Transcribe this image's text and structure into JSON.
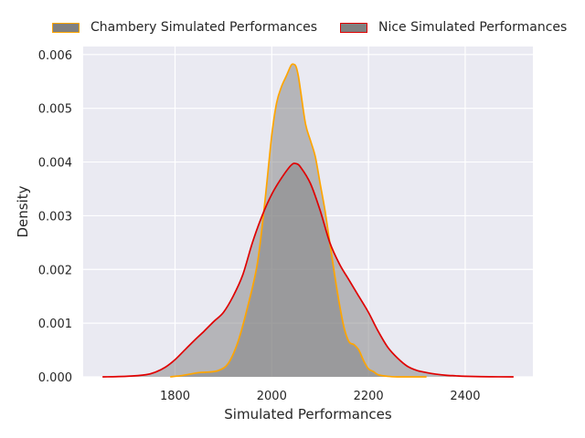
{
  "chart_data": {
    "type": "area",
    "xlabel": "Simulated Performances",
    "ylabel": "Density",
    "xlim": [
      1610,
      2540
    ],
    "ylim": [
      0,
      0.00615
    ],
    "x_ticks": [
      1800,
      2000,
      2200,
      2400
    ],
    "x_tick_labels": [
      "1800",
      "2000",
      "2200",
      "2400"
    ],
    "y_ticks": [
      0,
      0.001,
      0.002,
      0.003,
      0.004,
      0.005,
      0.006
    ],
    "y_tick_labels": [
      "0.000",
      "0.001",
      "0.002",
      "0.003",
      "0.004",
      "0.005",
      "0.006"
    ],
    "grid": true,
    "legend_position": "top",
    "background_color": "#eaeaf2",
    "series": [
      {
        "name": "Chambery Simulated Performances",
        "fill_color": "#808080",
        "line_color": "#ffa500",
        "x": [
          1790,
          1810,
          1830,
          1850,
          1870,
          1890,
          1910,
          1930,
          1950,
          1970,
          1985,
          2000,
          2010,
          2020,
          2030,
          2040,
          2045,
          2050,
          2055,
          2060,
          2070,
          2080,
          2090,
          2100,
          2110,
          2120,
          2130,
          2140,
          2150,
          2160,
          2170,
          2180,
          2190,
          2200,
          2210,
          2220,
          2240,
          2260,
          2280,
          2300,
          2320
        ],
        "values": [
          0,
          2e-05,
          5e-05,
          8e-05,
          9e-05,
          0.00012,
          0.00025,
          0.00065,
          0.0013,
          0.0021,
          0.0032,
          0.0045,
          0.0051,
          0.0054,
          0.0056,
          0.0058,
          0.00582,
          0.00578,
          0.0056,
          0.0053,
          0.0047,
          0.0044,
          0.0041,
          0.0036,
          0.0031,
          0.0025,
          0.0019,
          0.00135,
          0.0009,
          0.00065,
          0.0006,
          0.0005,
          0.0003,
          0.00015,
          0.0001,
          4e-05,
          1e-05,
          0,
          0,
          0,
          0
        ]
      },
      {
        "name": "Nice Simulated Performances",
        "fill_color": "#808080",
        "line_color": "#e00000",
        "x": [
          1650,
          1700,
          1740,
          1760,
          1780,
          1800,
          1820,
          1840,
          1860,
          1880,
          1900,
          1920,
          1940,
          1960,
          1980,
          2000,
          2020,
          2040,
          2050,
          2060,
          2080,
          2100,
          2120,
          2140,
          2160,
          2180,
          2200,
          2220,
          2240,
          2260,
          2280,
          2300,
          2320,
          2340,
          2360,
          2380,
          2400,
          2450,
          2500
        ],
        "values": [
          0,
          1e-05,
          4e-05,
          9e-05,
          0.00018,
          0.00032,
          0.0005,
          0.00068,
          0.00085,
          0.00103,
          0.0012,
          0.0015,
          0.0019,
          0.0025,
          0.003,
          0.0034,
          0.0037,
          0.00394,
          0.00397,
          0.0039,
          0.0036,
          0.0031,
          0.0025,
          0.0021,
          0.0018,
          0.0015,
          0.0012,
          0.00085,
          0.00055,
          0.00035,
          0.0002,
          0.00012,
          8e-05,
          5e-05,
          3e-05,
          2e-05,
          1e-05,
          2e-06,
          0
        ]
      }
    ]
  }
}
